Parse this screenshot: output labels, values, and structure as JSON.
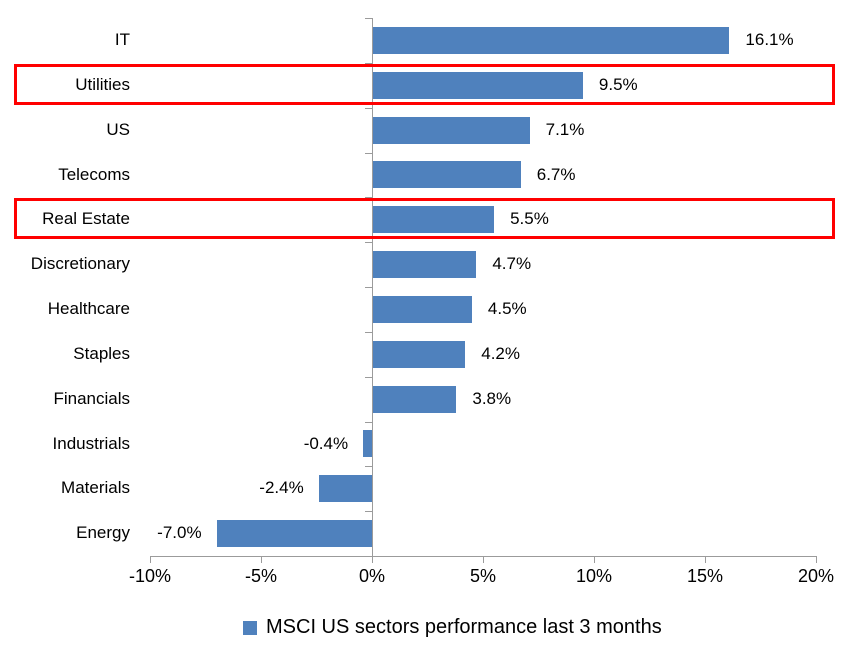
{
  "chart_data": {
    "type": "bar",
    "orientation": "horizontal",
    "title": "",
    "xlabel": "",
    "ylabel": "",
    "categories": [
      "IT",
      "Utilities",
      "US",
      "Telecoms",
      "Real Estate",
      "Discretionary",
      "Healthcare",
      "Staples",
      "Financials",
      "Industrials",
      "Materials",
      "Energy"
    ],
    "values": [
      16.1,
      9.5,
      7.1,
      6.7,
      5.5,
      4.7,
      4.5,
      4.2,
      3.8,
      -0.4,
      -2.4,
      -7.0
    ],
    "value_labels": [
      "16.1%",
      "9.5%",
      "7.1%",
      "6.7%",
      "5.5%",
      "4.7%",
      "4.5%",
      "4.2%",
      "3.8%",
      "-0.4%",
      "-2.4%",
      "-7.0%"
    ],
    "highlighted_categories": [
      "Utilities",
      "Real Estate"
    ],
    "xlim": [
      -10,
      20
    ],
    "x_ticks": [
      {
        "value": -10,
        "label": "-10%"
      },
      {
        "value": -5,
        "label": "-5%"
      },
      {
        "value": 0,
        "label": "0%"
      },
      {
        "value": 5,
        "label": "5%"
      },
      {
        "value": 10,
        "label": "10%"
      },
      {
        "value": 15,
        "label": "15%"
      },
      {
        "value": 20,
        "label": "20%"
      }
    ],
    "grid": false,
    "legend": {
      "position": "bottom",
      "label": "MSCI US sectors performance last 3 months"
    },
    "colors": {
      "bar": "#4F81BD",
      "highlight_box": "#FF0000",
      "axis": "#9B9B9B",
      "text": "#000000",
      "background": "#FFFFFF"
    }
  }
}
